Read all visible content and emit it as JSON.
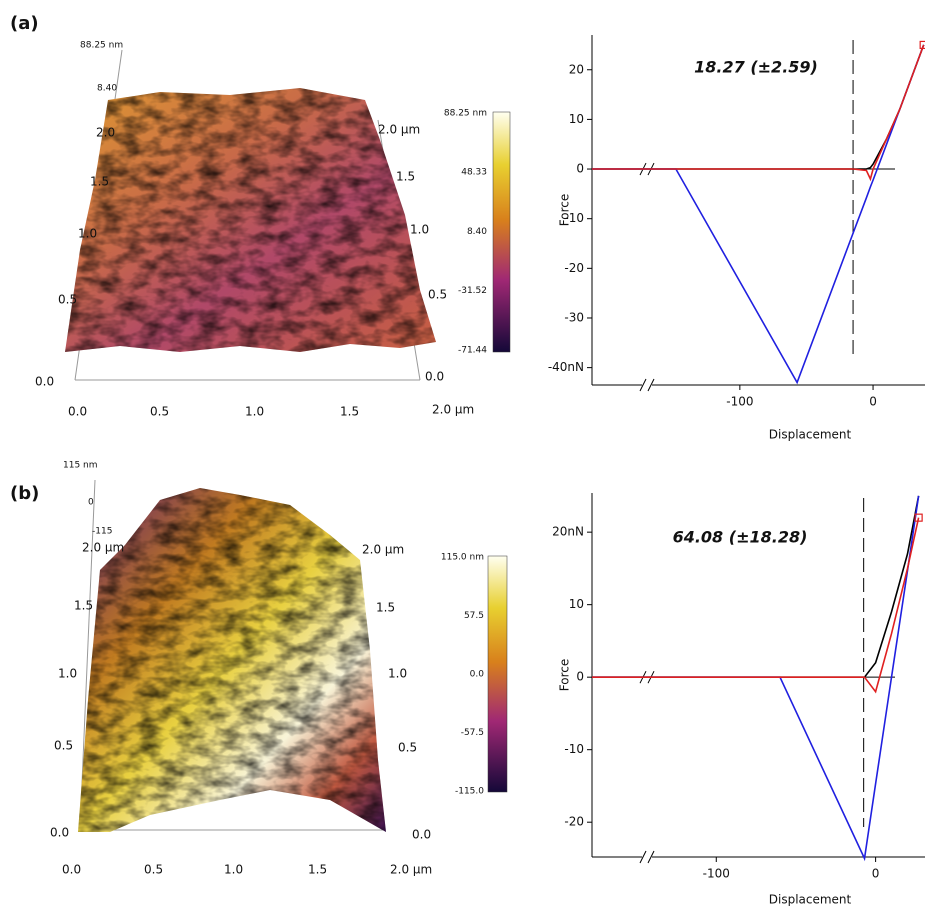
{
  "panels": [
    "(a)",
    "(b)"
  ],
  "afm": [
    {
      "z_top": "88.25 nm",
      "z_ticks": [
        "8.40"
      ],
      "y_ticks": [
        "0.0",
        "0.5",
        "1.0",
        "1.5",
        "2.0"
      ],
      "x_ticks": [
        "0.0",
        "0.5",
        "1.0",
        "1.5",
        "2.0 µm"
      ],
      "depth_ticks": [
        "0.0",
        "0.5",
        "1.0",
        "1.5",
        "2.0 µm"
      ],
      "colorbar": [
        "88.25 nm",
        "48.33",
        "8.40",
        "-31.52",
        "-71.44"
      ]
    },
    {
      "z_top": "115 nm",
      "z_ticks": [
        "0",
        "-115"
      ],
      "y_ticks": [
        "0.0",
        "0.5",
        "1.0",
        "1.5",
        "2.0 µm"
      ],
      "x_ticks": [
        "0.0",
        "0.5",
        "1.0",
        "1.5",
        "2.0 µm"
      ],
      "depth_ticks": [
        "0.0",
        "0.5",
        "1.0",
        "1.5",
        "2.0 µm"
      ],
      "colorbar": [
        "115.0 nm",
        "57.5",
        "0.0",
        "-57.5",
        "-115.0"
      ]
    }
  ],
  "chart_data": [
    {
      "type": "line",
      "annotation": "18.27 (±2.59)",
      "x_label": "Displacement",
      "y_label": "Force",
      "x": [
        -211,
        -148,
        -57,
        -15,
        -5,
        -2,
        0,
        10,
        20,
        38
      ],
      "series": [
        {
          "color": "#000000",
          "values": [
            0,
            0,
            0,
            0,
            0,
            0.3,
            1,
            6,
            12,
            25
          ]
        },
        {
          "color": "#2020e0",
          "values": [
            0,
            0,
            -43,
            -12.9,
            -5.8,
            -3.6,
            -2.2,
            4.9,
            12,
            25
          ]
        },
        {
          "color": "#e02020",
          "marker": "square",
          "values": [
            0,
            0,
            0,
            0,
            -0.3,
            -2,
            0,
            6,
            12,
            25
          ]
        }
      ],
      "xlim": [
        -211,
        39
      ],
      "xticks": [
        -100,
        0
      ],
      "ylim": [
        -43.5,
        27
      ],
      "yticks": [
        20,
        10,
        0,
        -10,
        -20,
        -30,
        {
          "value": -40,
          "label": "-40nN"
        }
      ],
      "vline": -15,
      "grid": false
    },
    {
      "type": "line",
      "annotation": "64.08 (±18.28)",
      "x_label": "Displacement",
      "y_label": "Force",
      "x": [
        -178,
        -60,
        -7,
        0,
        10,
        20,
        27
      ],
      "series": [
        {
          "color": "#000000",
          "values": [
            0,
            0,
            0,
            2,
            9,
            17,
            25
          ]
        },
        {
          "color": "#2020e0",
          "values": [
            0,
            0,
            -25,
            -14.7,
            0,
            14.7,
            25
          ]
        },
        {
          "color": "#e02020",
          "marker": "square",
          "values": [
            0,
            0,
            0,
            -2,
            6,
            15,
            22
          ]
        }
      ],
      "xlim": [
        -178,
        31
      ],
      "xticks": [
        -100,
        0
      ],
      "ylim": [
        -24.8,
        25.4
      ],
      "yticks": [
        {
          "value": 20,
          "label": "20nN"
        },
        10,
        0,
        -10,
        -20
      ],
      "vline": -7.5,
      "grid": false
    }
  ]
}
